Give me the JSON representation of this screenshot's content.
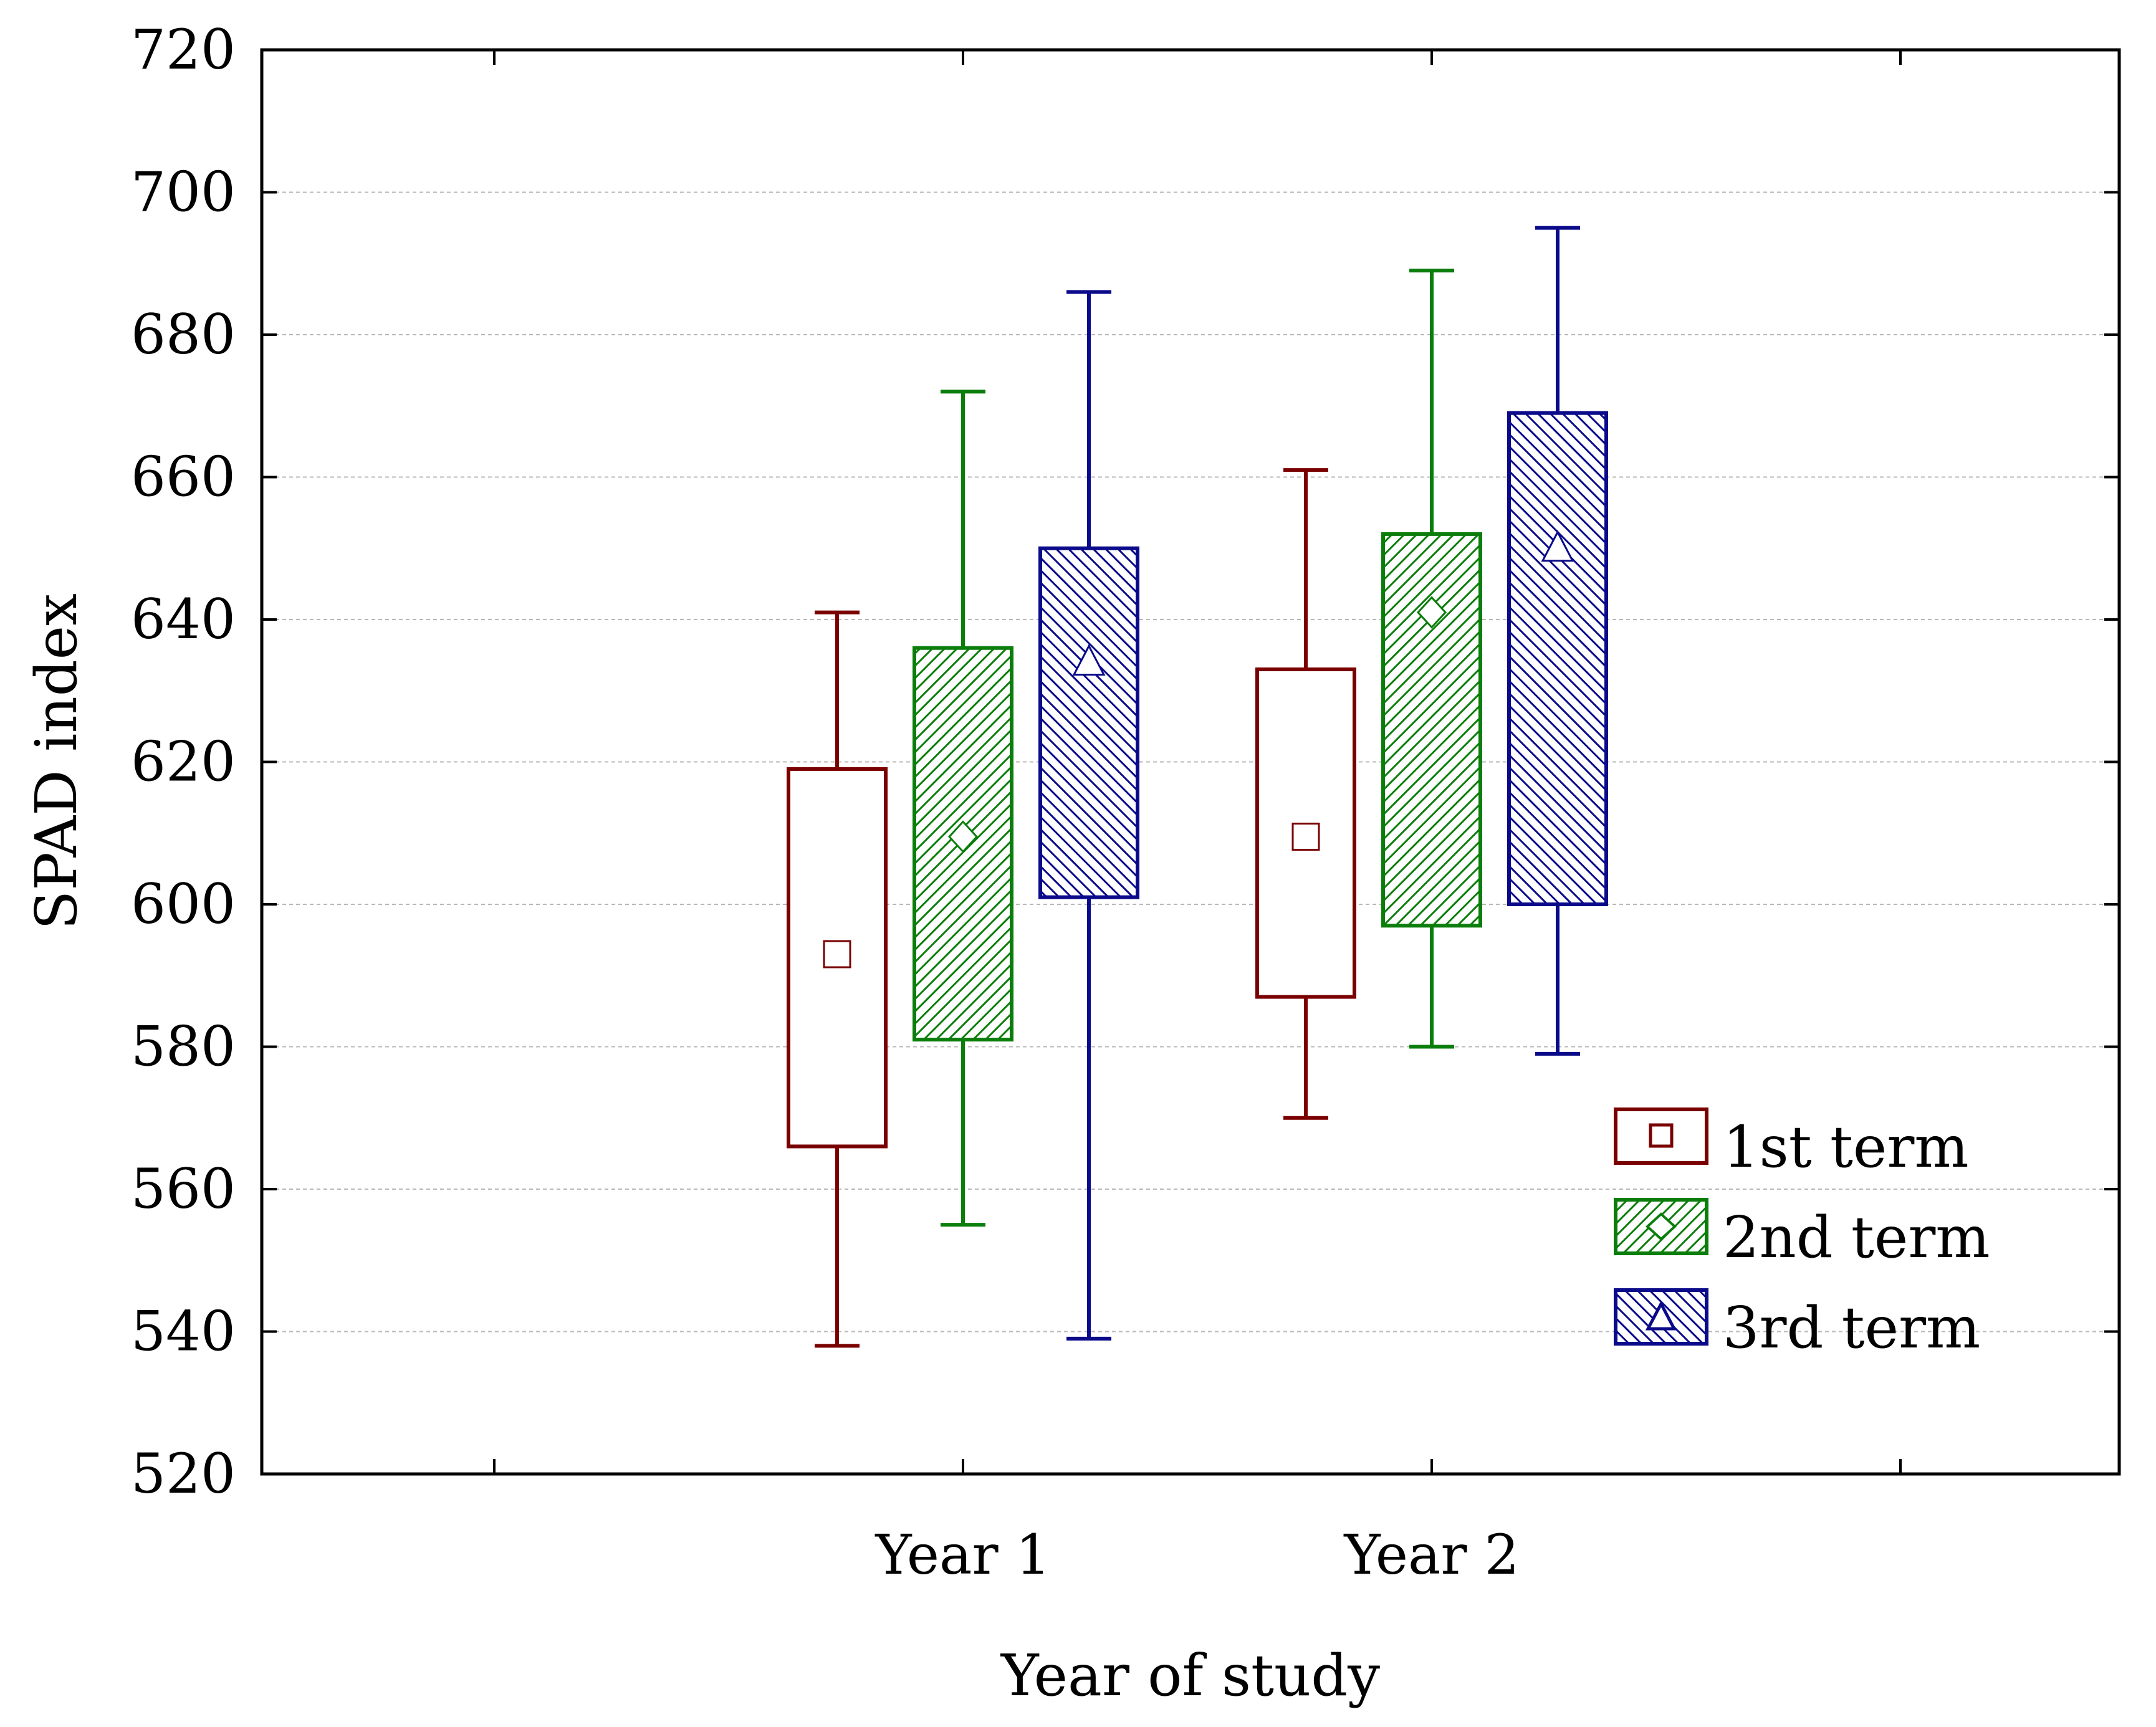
{
  "chart_data": {
    "type": "box",
    "xlabel": "Year of study",
    "ylabel": "SPAD index",
    "ylim": [
      520,
      720
    ],
    "yticks": [
      520,
      540,
      560,
      580,
      600,
      620,
      640,
      660,
      680,
      700,
      720
    ],
    "grid": true,
    "legend_placement": "lower-right",
    "categories": [
      "Year 1",
      "Year 2"
    ],
    "series": [
      {
        "name": "1st term",
        "color": "#7a0000",
        "pattern": "none",
        "marker": "square",
        "stats": [
          {
            "min": 538,
            "q1": 566,
            "mean": 593,
            "q3": 619,
            "max": 641
          },
          {
            "min": 570,
            "q1": 587,
            "mean": 609.5,
            "q3": 633,
            "max": 661
          }
        ]
      },
      {
        "name": "2nd term",
        "color": "#0b7d0b",
        "pattern": "diagonal-up",
        "marker": "diamond",
        "stats": [
          {
            "min": 555,
            "q1": 581,
            "mean": 609.5,
            "q3": 636,
            "max": 672
          },
          {
            "min": 580,
            "q1": 597,
            "mean": 641,
            "q3": 652,
            "max": 689
          }
        ]
      },
      {
        "name": "3rd term",
        "color": "#0a0a8a",
        "pattern": "diagonal-down",
        "marker": "triangle",
        "stats": [
          {
            "min": 539,
            "q1": 601,
            "mean": 634,
            "q3": 650,
            "max": 686
          },
          {
            "min": 579,
            "q1": 600,
            "mean": 650,
            "q3": 669,
            "max": 695
          }
        ]
      }
    ]
  }
}
